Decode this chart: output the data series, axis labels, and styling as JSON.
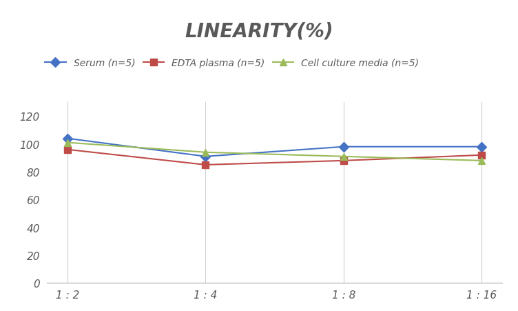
{
  "title": "LINEARITY(%)",
  "x_labels": [
    "1 : 2",
    "1 : 4",
    "1 : 8",
    "1 : 16"
  ],
  "x_positions": [
    0,
    1,
    2,
    3
  ],
  "series": [
    {
      "label": "Serum (n=5)",
      "values": [
        104,
        91,
        98,
        98
      ],
      "color": "#4472C4",
      "marker": "D",
      "markersize": 7,
      "linestyle": "-"
    },
    {
      "label": "EDTA plasma (n=5)",
      "values": [
        96,
        85,
        88,
        92
      ],
      "color": "#BE4B48",
      "marker": "s",
      "markersize": 7,
      "linestyle": "-"
    },
    {
      "label": "Cell culture media (n=5)",
      "values": [
        101,
        94,
        91,
        88
      ],
      "color": "#9BBB59",
      "marker": "^",
      "markersize": 7,
      "linestyle": "-"
    }
  ],
  "ylim": [
    0,
    130
  ],
  "yticks": [
    0,
    20,
    40,
    60,
    80,
    100,
    120
  ],
  "grid_color": "#D0D0D0",
  "background_color": "#FFFFFF",
  "title_fontsize": 20,
  "legend_fontsize": 10,
  "tick_fontsize": 11,
  "title_color": "#595959"
}
